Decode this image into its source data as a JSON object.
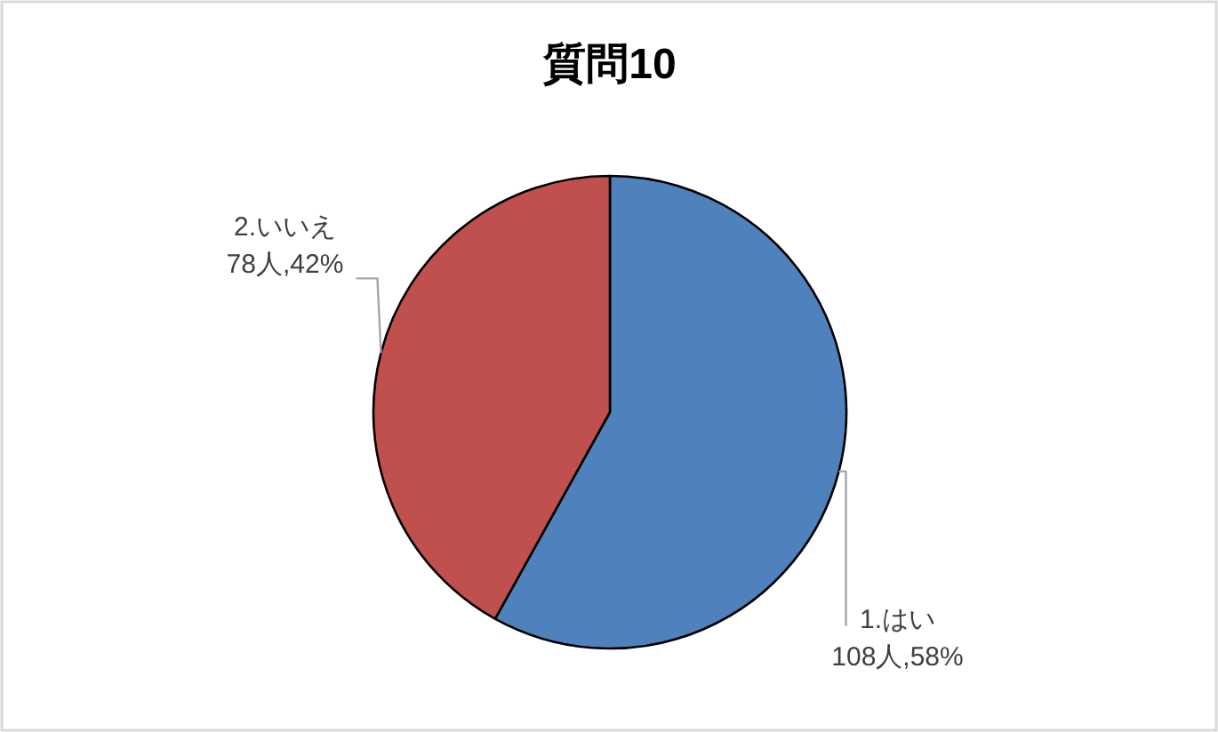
{
  "chart_data": {
    "type": "pie",
    "title": "質問10",
    "categories": [
      "1.はい",
      "2.いいえ"
    ],
    "values": [
      108,
      78
    ],
    "colors": [
      "#4f81bd",
      "#c0504d"
    ],
    "value_labels": [
      "108人,58%",
      "78人,42%"
    ]
  }
}
